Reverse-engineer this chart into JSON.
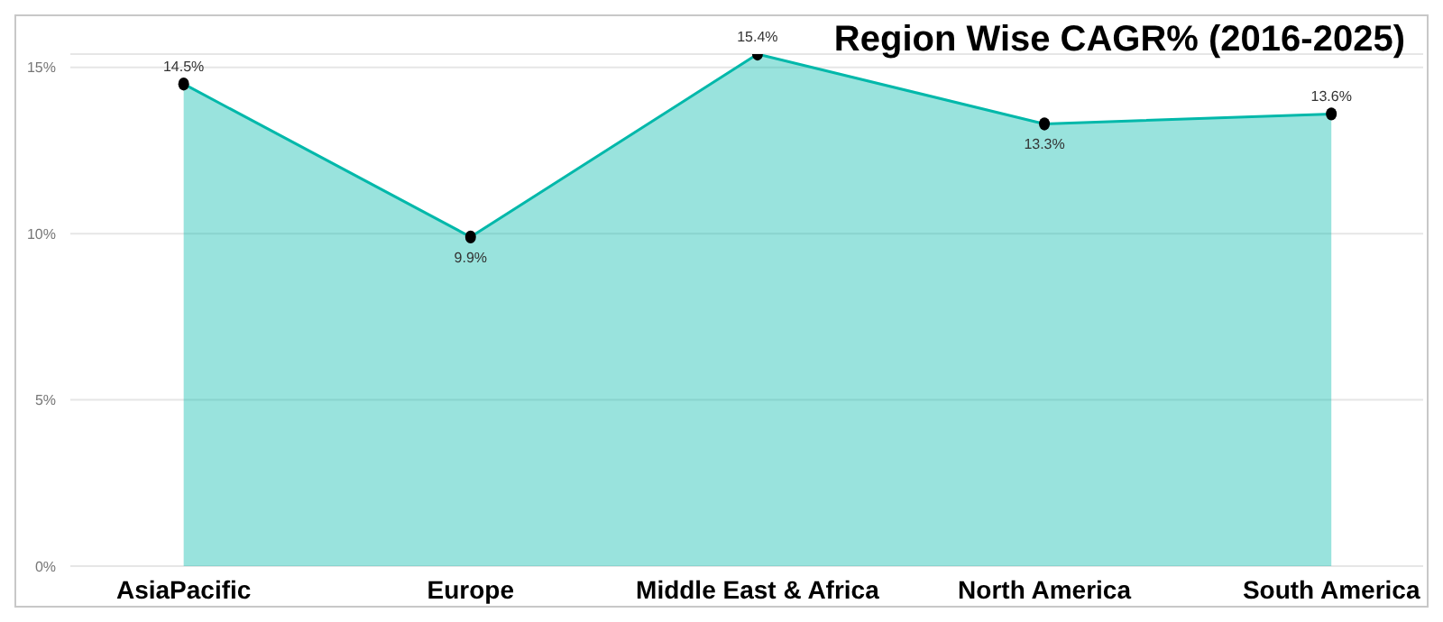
{
  "chart_data": {
    "type": "area",
    "title": "Region Wise CAGR% (2016-2025)",
    "categories": [
      "AsiaPacific",
      "Europe",
      "Middle East & Africa",
      "North America",
      "South America"
    ],
    "series": [
      {
        "color": "#01b8aa",
        "values": [
          14.5,
          9.9,
          15.4,
          13.3,
          13.6
        ],
        "value_labels": [
          "14.5%",
          "9.9%",
          "15.4%",
          "13.3%",
          "13.6%"
        ]
      }
    ],
    "ylim": [
      0,
      15.4
    ],
    "yticks": [
      {
        "value": 0,
        "label": "0%"
      },
      {
        "value": 5,
        "label": "5%"
      },
      {
        "value": 10,
        "label": "10%"
      },
      {
        "value": 15,
        "label": "15%"
      }
    ],
    "grid": "y",
    "marker": "circle"
  }
}
